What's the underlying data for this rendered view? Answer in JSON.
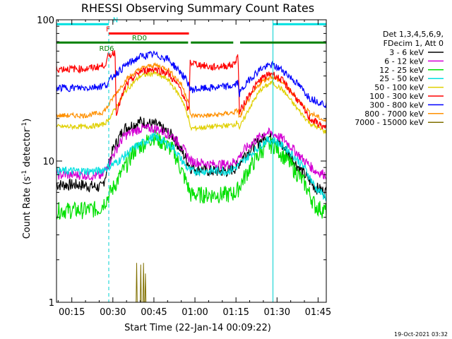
{
  "chart_data": {
    "type": "line",
    "title": "RHESSI Observing Summary Count Rates",
    "xlabel": "Start Time (22-Jan-14 00:09:22)",
    "ylabel": "Count Rate (s",
    "ylabel_sup": "-1",
    "ylabel_mid": " detector",
    "ylabel_sup2": "-1",
    "ylabel_end": ")",
    "yscale": "log",
    "ylim": [
      1,
      100
    ],
    "xlim_minutes": [
      9.4,
      108
    ],
    "x_ticks": [
      {
        "label": "00:15",
        "minute": 15
      },
      {
        "label": "00:30",
        "minute": 30
      },
      {
        "label": "00:45",
        "minute": 45
      },
      {
        "label": "01:00",
        "minute": 60
      },
      {
        "label": "01:15",
        "minute": 75
      },
      {
        "label": "01:30",
        "minute": 90
      },
      {
        "label": "01:45",
        "minute": 105
      }
    ],
    "y_ticks": [
      {
        "label": "1",
        "value": 1
      },
      {
        "label": "10",
        "value": 10
      },
      {
        "label": "100",
        "value": 100
      }
    ],
    "legend_header": [
      "Det 1,3,4,5,6,9,",
      "FDecim 1, Att 0"
    ],
    "legend_placement": "right",
    "series": [
      {
        "name": "3 - 6 keV",
        "color": "#000000",
        "points": [
          [
            9.4,
            6.8
          ],
          [
            18,
            6.8
          ],
          [
            26,
            6.5
          ],
          [
            30,
            12
          ],
          [
            34,
            17
          ],
          [
            40,
            19
          ],
          [
            46,
            18
          ],
          [
            52,
            15
          ],
          [
            56,
            11
          ],
          [
            58.5,
            9
          ],
          [
            66,
            8.5
          ],
          [
            72,
            8.5
          ],
          [
            75,
            9
          ],
          [
            78,
            11
          ],
          [
            82,
            13
          ],
          [
            86,
            15
          ],
          [
            89,
            14.5
          ],
          [
            93,
            12
          ],
          [
            98,
            9
          ],
          [
            104,
            6.5
          ],
          [
            108,
            6.0
          ]
        ]
      },
      {
        "name": "6 - 12 keV",
        "color": "#d400d4",
        "points": [
          [
            9.4,
            8
          ],
          [
            18,
            8
          ],
          [
            26,
            7.8
          ],
          [
            30,
            11
          ],
          [
            34,
            15
          ],
          [
            40,
            17
          ],
          [
            46,
            17
          ],
          [
            52,
            15
          ],
          [
            56,
            12
          ],
          [
            58.5,
            10
          ],
          [
            66,
            9.5
          ],
          [
            72,
            9.5
          ],
          [
            75,
            10
          ],
          [
            78,
            12
          ],
          [
            82,
            14
          ],
          [
            86,
            16
          ],
          [
            89,
            15.5
          ],
          [
            93,
            14
          ],
          [
            98,
            11
          ],
          [
            104,
            8.5
          ],
          [
            108,
            8.0
          ]
        ]
      },
      {
        "name": "12 - 25 keV",
        "color": "#00e000",
        "points": [
          [
            9.4,
            4.5
          ],
          [
            18,
            4.5
          ],
          [
            25,
            4.6
          ],
          [
            28,
            5.5
          ],
          [
            32,
            7.5
          ],
          [
            38,
            12
          ],
          [
            45,
            15
          ],
          [
            52,
            12
          ],
          [
            57,
            7
          ],
          [
            58.5,
            5.8
          ],
          [
            66,
            5.8
          ],
          [
            72,
            5.8
          ],
          [
            75,
            6
          ],
          [
            80,
            9
          ],
          [
            86,
            13
          ],
          [
            89,
            13
          ],
          [
            94,
            10
          ],
          [
            100,
            7
          ],
          [
            104,
            4.8
          ],
          [
            108,
            4.4
          ]
        ]
      },
      {
        "name": "25 - 50 keV",
        "color": "#00e0e0",
        "points": [
          [
            9.4,
            8.5
          ],
          [
            18,
            8.5
          ],
          [
            25,
            8.5
          ],
          [
            28,
            9
          ],
          [
            32,
            10
          ],
          [
            38,
            12.5
          ],
          [
            45,
            15
          ],
          [
            52,
            12.5
          ],
          [
            57,
            9
          ],
          [
            58.5,
            8.5
          ],
          [
            66,
            8.5
          ],
          [
            72,
            8.5
          ],
          [
            75,
            9
          ],
          [
            80,
            11
          ],
          [
            86,
            14
          ],
          [
            89,
            14
          ],
          [
            94,
            12
          ],
          [
            100,
            9
          ],
          [
            104,
            6.5
          ],
          [
            108,
            5.5
          ]
        ]
      },
      {
        "name": "50 - 100 keV",
        "color": "#e0d000",
        "points": [
          [
            9.4,
            17.5
          ],
          [
            20,
            17.5
          ],
          [
            26,
            18
          ],
          [
            27.8,
            19
          ],
          [
            30,
            22
          ],
          [
            35,
            32
          ],
          [
            40,
            40
          ],
          [
            45,
            42
          ],
          [
            50,
            38
          ],
          [
            55,
            28
          ],
          [
            57.8,
            20
          ],
          [
            58.2,
            17
          ],
          [
            66,
            17.5
          ],
          [
            74,
            18
          ],
          [
            75.8,
            19
          ],
          [
            76.2,
            17
          ],
          [
            80,
            24
          ],
          [
            84,
            32
          ],
          [
            88,
            36
          ],
          [
            92,
            32
          ],
          [
            97,
            24
          ],
          [
            102,
            18.5
          ],
          [
            108,
            16
          ]
        ]
      },
      {
        "name": "100 - 300 keV",
        "color": "#ff0000",
        "points": [
          [
            9.4,
            45
          ],
          [
            20,
            45
          ],
          [
            26,
            47
          ],
          [
            27.8,
            50
          ],
          [
            28.2,
            55
          ],
          [
            30,
            58
          ],
          [
            30.8,
            60
          ],
          [
            31.2,
            22
          ],
          [
            35,
            35
          ],
          [
            40,
            43
          ],
          [
            45,
            45
          ],
          [
            50,
            42
          ],
          [
            55,
            32
          ],
          [
            57.8,
            22
          ],
          [
            58.2,
            50
          ],
          [
            66,
            46
          ],
          [
            74,
            48
          ],
          [
            75.8,
            56
          ],
          [
            76.2,
            22
          ],
          [
            80,
            30
          ],
          [
            84,
            38
          ],
          [
            88,
            42
          ],
          [
            92,
            37
          ],
          [
            97,
            28
          ],
          [
            102,
            20
          ],
          [
            108,
            17
          ]
        ]
      },
      {
        "name": "300 - 800 keV",
        "color": "#0000ff",
        "points": [
          [
            9.4,
            33
          ],
          [
            20,
            33
          ],
          [
            26,
            34
          ],
          [
            28,
            35
          ],
          [
            30,
            40
          ],
          [
            35,
            48
          ],
          [
            40,
            55
          ],
          [
            45,
            57
          ],
          [
            50,
            53
          ],
          [
            55,
            42
          ],
          [
            57.8,
            35
          ],
          [
            58.2,
            32
          ],
          [
            66,
            33
          ],
          [
            74,
            34
          ],
          [
            75.8,
            36
          ],
          [
            76.2,
            30
          ],
          [
            80,
            38
          ],
          [
            84,
            45
          ],
          [
            88,
            48
          ],
          [
            92,
            44
          ],
          [
            97,
            36
          ],
          [
            102,
            28
          ],
          [
            108,
            25
          ]
        ]
      },
      {
        "name": "800 - 7000 keV",
        "color": "#ff9000",
        "points": [
          [
            9.4,
            21
          ],
          [
            20,
            21
          ],
          [
            26,
            22
          ],
          [
            28,
            24
          ],
          [
            30,
            28
          ],
          [
            35,
            38
          ],
          [
            40,
            45
          ],
          [
            45,
            48
          ],
          [
            50,
            45
          ],
          [
            55,
            35
          ],
          [
            57.8,
            26
          ],
          [
            58.2,
            21
          ],
          [
            66,
            21
          ],
          [
            74,
            22
          ],
          [
            75.8,
            23
          ],
          [
            76.2,
            20
          ],
          [
            80,
            28
          ],
          [
            84,
            36
          ],
          [
            88,
            40
          ],
          [
            92,
            36
          ],
          [
            97,
            28
          ],
          [
            102,
            22
          ],
          [
            108,
            19
          ]
        ]
      },
      {
        "name": "7000 - 15000 keV",
        "color": "#807000",
        "points": [
          [
            38.5,
            1.0
          ],
          [
            38.7,
            1.9
          ],
          [
            38.9,
            1.0
          ],
          [
            40.0,
            1.0
          ],
          [
            40.2,
            1.85
          ],
          [
            40.4,
            1.0
          ],
          [
            41.0,
            1.0
          ],
          [
            41.2,
            1.9
          ],
          [
            41.4,
            1.0
          ],
          [
            41.7,
            1.0
          ],
          [
            41.9,
            1.6
          ],
          [
            42.1,
            1.0
          ]
        ]
      }
    ],
    "flags": [
      {
        "label": "N",
        "color": "#00e0e0",
        "segments": [
          [
            9.4,
            28.5
          ],
          [
            88.5,
            108
          ]
        ],
        "value": 93,
        "label_minute": 30
      },
      {
        "label": "F",
        "color": "#ff0000",
        "segments": [
          [
            28.5,
            57.8
          ]
        ],
        "value": 80,
        "label_minute": 27.5
      },
      {
        "label": "RD0",
        "color": "#008000",
        "segments": [
          [
            30.5,
            57.5
          ],
          [
            58.5,
            74
          ],
          [
            76.5,
            108
          ]
        ],
        "value": 69,
        "label_minute": 37
      },
      {
        "label": "RD6",
        "color": "#008000",
        "segments": [
          [
            9.4,
            30.5
          ]
        ],
        "value": 69,
        "label_minute": 25
      }
    ],
    "solid_vlines_minutes": [
      9.4,
      88.5
    ],
    "dashed_vlines_minutes": [
      28.5,
      108
    ]
  },
  "footer": {
    "timestamp": "19-Oct-2021 03:32"
  }
}
